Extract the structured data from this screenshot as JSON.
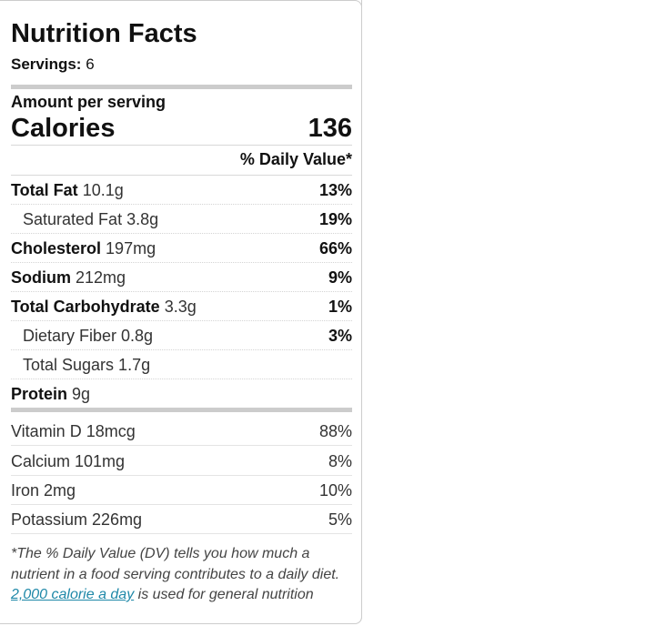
{
  "title": "Nutrition Facts",
  "servings": {
    "label": "Servings:",
    "value": "6"
  },
  "amount_per_serving": "Amount per serving",
  "calories": {
    "label": "Calories",
    "value": "136"
  },
  "daily_value_header": "% Daily Value*",
  "nutrients": [
    {
      "bold": "Total Fat",
      "amount": "10.1g",
      "dv": "13%"
    },
    {
      "bold": "",
      "amount": "Saturated Fat 3.8g",
      "dv": "19%"
    },
    {
      "bold": "Cholesterol",
      "amount": "197mg",
      "dv": "66%"
    },
    {
      "bold": "Sodium",
      "amount": "212mg",
      "dv": "9%"
    },
    {
      "bold": "Total Carbohydrate",
      "amount": "3.3g",
      "dv": "1%"
    },
    {
      "bold": "",
      "amount": "Dietary Fiber 0.8g",
      "dv": "3%"
    },
    {
      "bold": "",
      "amount": "Total Sugars 1.7g",
      "dv": ""
    },
    {
      "bold": "Protein",
      "amount": "9g",
      "dv": ""
    }
  ],
  "vitamins": [
    {
      "name": "Vitamin D 18mcg",
      "dv": "88%"
    },
    {
      "name": "Calcium 101mg",
      "dv": "8%"
    },
    {
      "name": "Iron 2mg",
      "dv": "10%"
    },
    {
      "name": "Potassium 226mg",
      "dv": "5%"
    }
  ],
  "footnote": {
    "line1": "*The % Daily Value (DV) tells you how much a",
    "line2": "nutrient in a food serving contributes to a daily diet.",
    "link": "2,000 calorie a day",
    "line3_rest": " is used for general nutrition"
  },
  "colors": {
    "link": "#1e88a8",
    "thick_divider": "#cccccc"
  }
}
